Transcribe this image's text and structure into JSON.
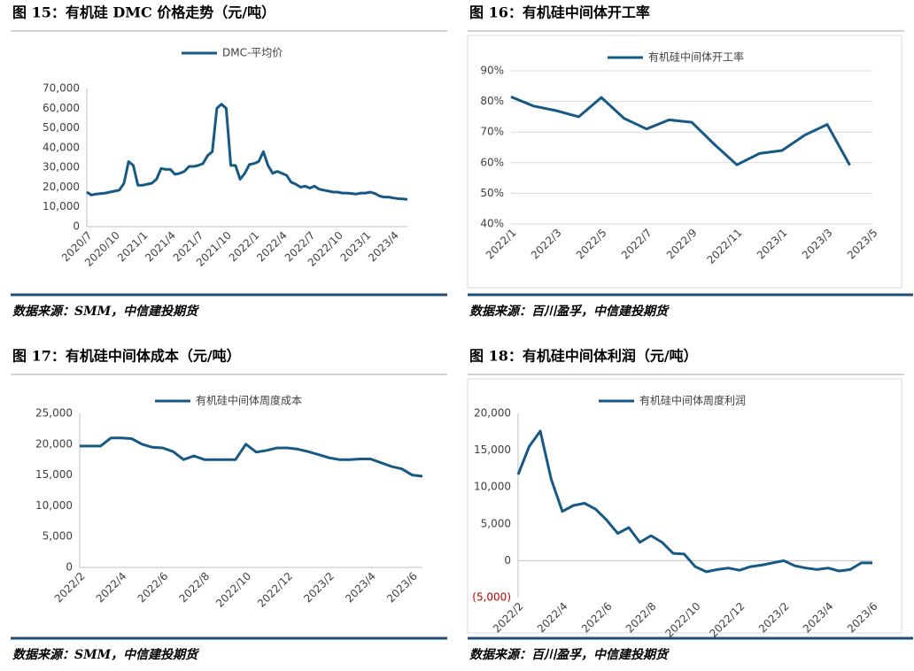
{
  "chart_data": [
    {
      "type": "line",
      "title": "图 15：有机硅 DMC 价格走势（元/吨）",
      "source": "数据来源：SMM，中信建投期货",
      "legend": "top",
      "grid": false,
      "categories": [
        "2020/7",
        null,
        null,
        null,
        null,
        null,
        "2020/10",
        null,
        null,
        null,
        null,
        null,
        "2021/1",
        null,
        null,
        null,
        null,
        null,
        "2021/4",
        null,
        null,
        null,
        null,
        null,
        "2021/7",
        null,
        null,
        null,
        null,
        null,
        "2021/10",
        null,
        null,
        null,
        null,
        null,
        "2022/1",
        null,
        null,
        null,
        null,
        null,
        "2022/4",
        null,
        null,
        null,
        null,
        null,
        "2022/7",
        null,
        null,
        null,
        null,
        null,
        "2022/10",
        null,
        null,
        null,
        null,
        null,
        "2023/1",
        null,
        null,
        null,
        null,
        null,
        "2023/4",
        null,
        null,
        null
      ],
      "series": [
        {
          "name": "DMC-平均价",
          "color": "#175985",
          "values": [
            17500,
            16000,
            16500,
            16800,
            17000,
            17500,
            18000,
            18500,
            22000,
            33000,
            31000,
            21000,
            21000,
            21500,
            22000,
            24000,
            29500,
            29000,
            29000,
            26500,
            27000,
            28000,
            30500,
            30500,
            31000,
            32000,
            36000,
            38000,
            60000,
            62000,
            60000,
            31000,
            31000,
            24000,
            27000,
            31500,
            32000,
            33000,
            38000,
            31000,
            27000,
            28000,
            27000,
            26000,
            22500,
            21500,
            20000,
            20500,
            19500,
            20500,
            19000,
            18500,
            18000,
            17500,
            17500,
            17000,
            17000,
            16800,
            16500,
            17000,
            17000,
            17500,
            16800,
            15500,
            15000,
            15000,
            14500,
            14200,
            14000,
            13800
          ]
        }
      ],
      "ylim": [
        0,
        70000
      ],
      "yticks": [
        0,
        {
          "value": 10000,
          "label": "10,000"
        },
        {
          "value": 20000,
          "label": "20,000"
        },
        {
          "value": 30000,
          "label": "30,000"
        },
        {
          "value": 40000,
          "label": "40,000"
        },
        {
          "value": 50000,
          "label": "50,000"
        },
        {
          "value": 60000,
          "label": "60,000"
        },
        {
          "value": 70000,
          "label": "70,000"
        }
      ]
    },
    {
      "type": "line",
      "title": "图 16：有机硅中间体开工率",
      "source": "数据来源：百川盈孚，中信建投期货",
      "legend": "top",
      "grid": true,
      "categories": [
        "2022/1",
        null,
        "2022/3",
        null,
        "2022/5",
        null,
        "2022/7",
        null,
        "2022/9",
        null,
        "2022/11",
        null,
        "2023/1",
        null,
        "2023/3",
        null,
        "2023/5"
      ],
      "series": [
        {
          "name": "有机硅中间体开工率",
          "color": "#175985",
          "values": [
            81.5,
            78.5,
            77,
            75,
            81.3,
            74.5,
            71,
            74,
            73.2,
            66,
            59.3,
            63,
            64,
            69,
            72.5,
            59.2,
            null
          ]
        }
      ],
      "ylim": [
        40,
        90
      ],
      "yticks": [
        {
          "value": 40,
          "label": "40%"
        },
        {
          "value": 50,
          "label": "50%"
        },
        {
          "value": 60,
          "label": "60%"
        },
        {
          "value": 70,
          "label": "70%"
        },
        {
          "value": 80,
          "label": "80%"
        },
        {
          "value": 90,
          "label": "90%"
        }
      ]
    },
    {
      "type": "line",
      "title": "图 17：有机硅中间体成本（元/吨）",
      "source": "数据来源：SMM，中信建投期货",
      "legend": "top",
      "grid": false,
      "categories": [
        "2022/2",
        null,
        null,
        null,
        "2022/4",
        null,
        null,
        null,
        "2022/6",
        null,
        null,
        null,
        "2022/8",
        null,
        null,
        null,
        "2022/10",
        null,
        null,
        null,
        "2022/12",
        null,
        null,
        null,
        "2023/2",
        null,
        null,
        null,
        "2023/4",
        null,
        null,
        null,
        "2023/6",
        null
      ],
      "series": [
        {
          "name": "有机硅中间体周度成本",
          "color": "#175985",
          "values": [
            19700,
            19700,
            19700,
            21000,
            21000,
            20900,
            20000,
            19500,
            19400,
            18800,
            17500,
            18100,
            17500,
            17500,
            17500,
            17500,
            20000,
            18700,
            19000,
            19400,
            19400,
            19200,
            18800,
            18300,
            17800,
            17500,
            17500,
            17600,
            17600,
            17000,
            16400,
            16000,
            15000,
            14800
          ]
        }
      ],
      "ylim": [
        0,
        25000
      ],
      "yticks": [
        0,
        {
          "value": 5000,
          "label": "5,000"
        },
        {
          "value": 10000,
          "label": "10,000"
        },
        {
          "value": 15000,
          "label": "15,000"
        },
        {
          "value": 20000,
          "label": "20,000"
        },
        {
          "value": 25000,
          "label": "25,000"
        }
      ]
    },
    {
      "type": "line",
      "title": "图 18：有机硅中间体利润（元/吨）",
      "source": "数据来源：百川盈孚，中信建投期货",
      "legend": "top",
      "grid": false,
      "negative_tick_color": "#c00000",
      "categories": [
        "2022/2",
        null,
        null,
        null,
        "2022/4",
        null,
        null,
        null,
        "2022/6",
        null,
        null,
        null,
        "2022/8",
        null,
        null,
        null,
        "2022/10",
        null,
        null,
        null,
        "2022/12",
        null,
        null,
        null,
        "2023/2",
        null,
        null,
        null,
        "2023/4",
        null,
        null,
        null,
        "2023/6"
      ],
      "series": [
        {
          "name": "有机硅中间体周度利润",
          "color": "#175985",
          "values": [
            11700,
            15500,
            17600,
            11000,
            6700,
            7500,
            7800,
            7000,
            5500,
            3700,
            4500,
            2500,
            3400,
            2500,
            1000,
            900,
            -800,
            -1500,
            -1200,
            -1000,
            -1300,
            -800,
            -600,
            -300,
            0,
            -700,
            -1000,
            -1200,
            -1000,
            -1400,
            -1200,
            -300,
            -300
          ]
        }
      ],
      "ylim": [
        -5000,
        20000
      ],
      "yticks": [
        {
          "value": -5000,
          "label": "(5,000)"
        },
        0,
        {
          "value": 5000,
          "label": "5,000"
        },
        {
          "value": 10000,
          "label": "10,000"
        },
        {
          "value": 15000,
          "label": "15,000"
        },
        {
          "value": 20000,
          "label": "20,000"
        }
      ]
    }
  ]
}
